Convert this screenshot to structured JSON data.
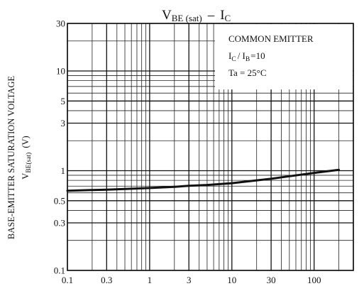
{
  "chart_data": {
    "type": "line",
    "title": {
      "v_main": "V",
      "v_sub": "BE (sat)",
      "sep": "–",
      "i_main": "I",
      "i_sub": "C"
    },
    "ylabel": {
      "line1": "BASE-EMITTER SATURATION VOLTAGE",
      "line2_main": "V",
      "line2_sub": "BE(sat)",
      "line2_unit": "(V)"
    },
    "xlabel": "",
    "x_scale": "log",
    "y_scale": "log",
    "xlim": [
      0.1,
      300
    ],
    "ylim": [
      0.1,
      30
    ],
    "grid": true,
    "x_ticks": [
      {
        "value": 0.1,
        "label": "0.1"
      },
      {
        "value": 0.3,
        "label": "0.3"
      },
      {
        "value": 1,
        "label": "1"
      },
      {
        "value": 3,
        "label": "3"
      },
      {
        "value": 10,
        "label": "10"
      },
      {
        "value": 30,
        "label": "30"
      },
      {
        "value": 100,
        "label": "100"
      }
    ],
    "y_ticks": [
      {
        "value": 0.1,
        "label": "0.1"
      },
      {
        "value": 0.3,
        "label": "0.3"
      },
      {
        "value": 0.5,
        "label": "0.5"
      },
      {
        "value": 1,
        "label": "1"
      },
      {
        "value": 3,
        "label": "3"
      },
      {
        "value": 5,
        "label": "5"
      },
      {
        "value": 10,
        "label": "10"
      },
      {
        "value": 30,
        "label": "30"
      }
    ],
    "annotation": {
      "line1": "COMMON EMITTER",
      "line2_a": "I",
      "line2_a_sub": "C",
      "line2_sep": "/ I",
      "line2_b_sub": "B",
      "line2_eq": "=10",
      "line3": "Ta = 25°C"
    },
    "series": [
      {
        "x": [
          0.1,
          0.2,
          0.3,
          0.5,
          1,
          2,
          3,
          5,
          10,
          20,
          30,
          50,
          100,
          200
        ],
        "y": [
          0.63,
          0.64,
          0.645,
          0.655,
          0.67,
          0.69,
          0.705,
          0.72,
          0.75,
          0.8,
          0.83,
          0.88,
          0.95,
          1.02
        ]
      }
    ]
  }
}
